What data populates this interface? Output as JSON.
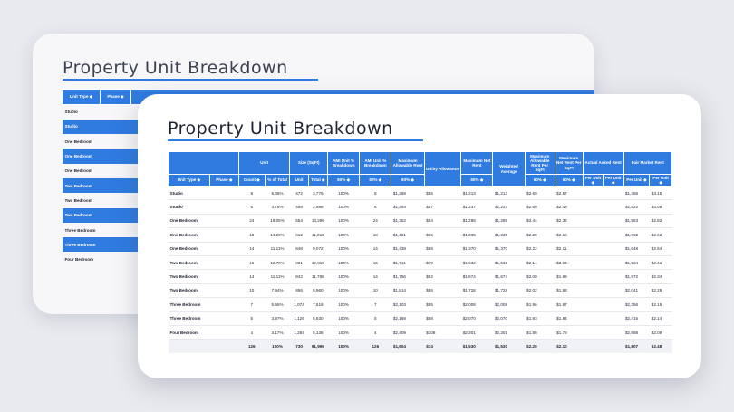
{
  "page": {
    "title": "Property Unit Breakdown"
  },
  "back_card": {
    "header": [
      "Unit Type ◆",
      "Phase ◆",
      ""
    ],
    "rows": [
      {
        "label": "Studio",
        "highlight": false
      },
      {
        "label": "Studio",
        "highlight": true
      },
      {
        "label": "One Bedroom",
        "highlight": false
      },
      {
        "label": "One Bedroom",
        "highlight": true
      },
      {
        "label": "One Bedroom",
        "highlight": false
      },
      {
        "label": "Two Bedroom",
        "highlight": true
      },
      {
        "label": "Two Bedroom",
        "highlight": false
      },
      {
        "label": "Two Bedroom",
        "highlight": true
      },
      {
        "label": "Three Bedroom",
        "highlight": false
      },
      {
        "label": "Three Bedroom",
        "highlight": true
      },
      {
        "label": "Four Bedroom",
        "highlight": false
      }
    ]
  },
  "table": {
    "group_headers": {
      "unit": "Unit",
      "size": "Size (SqFt)",
      "ami_unit_breakdown": "AMI Unit % Breakdown",
      "ami_unit_breakdown2": "AMI Unit % Breakdown",
      "max_allowable_rent": "Maximum Allowable Rent",
      "utility_allowance": "Utility Allowance",
      "max_net_rent": "Maximum Net Rent",
      "weighted_average": "Weighted Average",
      "max_allowable_rent_sqft": "Maximum Allowable Rent Per SqFt",
      "max_net_rent_sqft": "Maximum Net Rent Per SqFt",
      "actual_asked_rent": "Actual Asked Rent",
      "fair_market_rent": "Fair Market Rent"
    },
    "sub_headers": {
      "unit_type": "Unit Type ◆",
      "phase": "Phase ◆",
      "count": "Count ◆",
      "pct_total": "% of Total",
      "unit": "Unit",
      "total": "Total ◆",
      "pct60a": "60% ◆",
      "pct60b": "60% ◆",
      "pct60c": "60% ◆",
      "pct60d": "60% ◆",
      "pct60e": "60% ◆",
      "pct60f": "60% ◆",
      "per_unit_a": "Per Unit ◆",
      "per_unit_b": "Per Unit ◆",
      "per_unit_c": "Per Unit ◆",
      "per_unit_d": "Per Unit ◆"
    },
    "rows": [
      [
        "Studio",
        "",
        "8",
        "6.35%",
        "472",
        "3,776",
        "100%",
        "8",
        "$1,268",
        "$55",
        "$1,213",
        "$1,213",
        "$2.69",
        "$2.57",
        "",
        "",
        "$1,486",
        "$3.15"
      ],
      [
        "Studio",
        "",
        "6",
        "4.76%",
        "498",
        "2,988",
        "100%",
        "6",
        "$1,294",
        "$57",
        "$1,237",
        "$1,237",
        "$2.60",
        "$2.48",
        "",
        "",
        "$1,522",
        "$3.06"
      ],
      [
        "One Bedroom",
        "",
        "24",
        "19.05%",
        "554",
        "13,296",
        "100%",
        "24",
        "$1,352",
        "$64",
        "$1,288",
        "$1,288",
        "$2.44",
        "$2.32",
        "",
        "",
        "$1,563",
        "$2.82"
      ],
      [
        "One Bedroom",
        "",
        "18",
        "14.29%",
        "612",
        "11,016",
        "100%",
        "18",
        "$1,401",
        "$66",
        "$1,335",
        "$1,335",
        "$2.29",
        "$2.18",
        "",
        "",
        "$1,602",
        "$2.62"
      ],
      [
        "One Bedroom",
        "",
        "14",
        "11.11%",
        "648",
        "9,072",
        "100%",
        "14",
        "$1,438",
        "$68",
        "$1,370",
        "$1,370",
        "$2.22",
        "$2.11",
        "",
        "",
        "$1,648",
        "$2.54"
      ],
      [
        "Two Bedroom",
        "",
        "16",
        "12.70%",
        "801",
        "12,816",
        "100%",
        "16",
        "$1,711",
        "$79",
        "$1,632",
        "$1,632",
        "$2.14",
        "$2.04",
        "",
        "",
        "$1,924",
        "$2.41"
      ],
      [
        "Two Bedroom",
        "",
        "14",
        "11.11%",
        "842",
        "11,788",
        "100%",
        "14",
        "$1,756",
        "$82",
        "$1,674",
        "$1,674",
        "$2.09",
        "$1.99",
        "",
        "",
        "$1,972",
        "$2.34"
      ],
      [
        "Two Bedroom",
        "",
        "10",
        "7.94%",
        "896",
        "8,960",
        "100%",
        "10",
        "$1,814",
        "$86",
        "$1,728",
        "$1,728",
        "$2.02",
        "$1.93",
        "",
        "",
        "$2,041",
        "$2.28"
      ],
      [
        "Three Bedroom",
        "",
        "7",
        "5.56%",
        "1,074",
        "7,518",
        "100%",
        "7",
        "$2,103",
        "$95",
        "$2,008",
        "$2,008",
        "$1.96",
        "$1.87",
        "",
        "",
        "$2,356",
        "$2.19"
      ],
      [
        "Three Bedroom",
        "",
        "5",
        "3.97%",
        "1,126",
        "5,630",
        "100%",
        "5",
        "$2,168",
        "$98",
        "$2,070",
        "$2,070",
        "$1.93",
        "$1.84",
        "",
        "",
        "$2,415",
        "$2.14"
      ],
      [
        "Four Bedroom",
        "",
        "4",
        "3.17%",
        "1,284",
        "5,136",
        "100%",
        "4",
        "$2,409",
        "$108",
        "$2,301",
        "$2,301",
        "$1.88",
        "$1.79",
        "",
        "",
        "$2,688",
        "$2.09"
      ]
    ],
    "total_row": [
      "",
      "",
      "126",
      "100%",
      "730",
      "91,996",
      "100%",
      "126",
      "$1,604",
      "$74",
      "$1,530",
      "$1,530",
      "$2.20",
      "$2.10",
      "",
      "",
      "$1,807",
      "$2.48"
    ]
  }
}
